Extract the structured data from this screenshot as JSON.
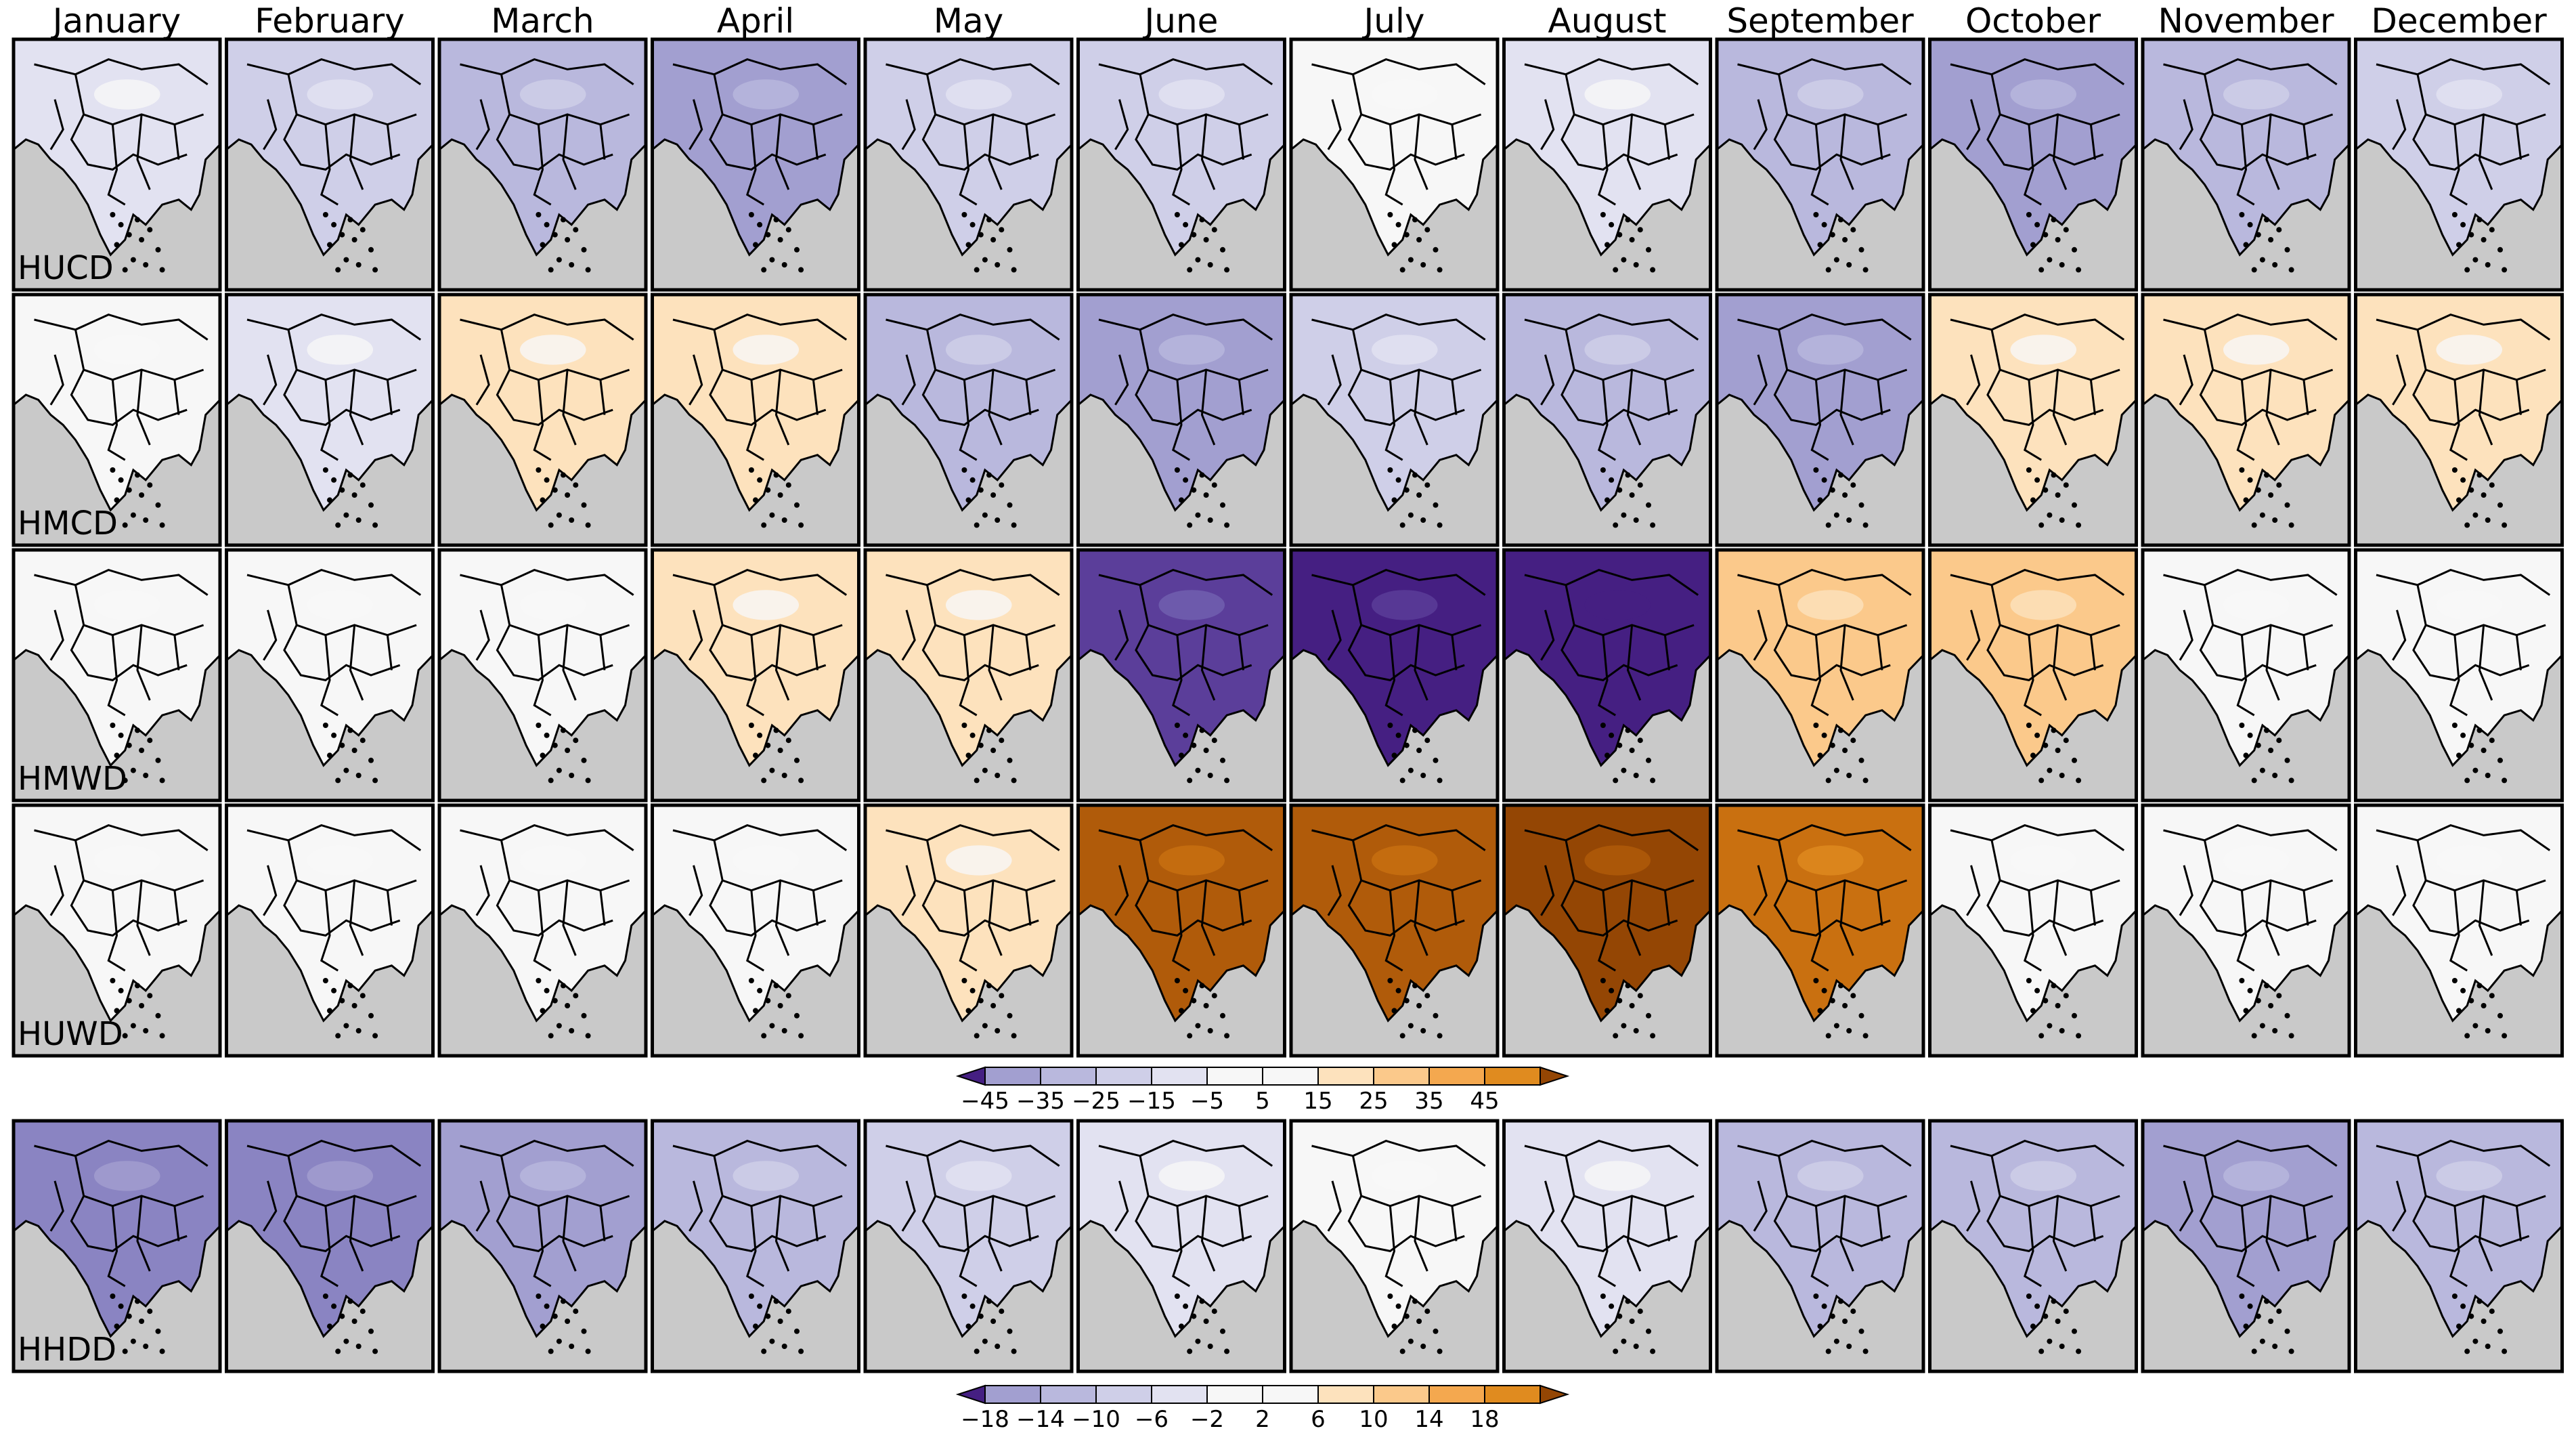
{
  "months": [
    "January",
    "February",
    "March",
    "April",
    "May",
    "June",
    "July",
    "August",
    "September",
    "October",
    "November",
    "December"
  ],
  "rows": [
    {
      "label": "HUCD",
      "levels": [
        1,
        2,
        3,
        4,
        2,
        2,
        0,
        1,
        3,
        4,
        3,
        2
      ]
    },
    {
      "label": "HMCD",
      "levels": [
        0,
        1,
        -1,
        -1,
        3,
        4,
        2,
        3,
        4,
        -1,
        -1,
        -1
      ]
    },
    {
      "label": "HMWD",
      "levels": [
        0,
        0,
        0,
        -1,
        -1,
        7,
        8,
        9,
        -2,
        -2,
        0,
        0
      ]
    },
    {
      "label": "HUWD",
      "levels": [
        0,
        0,
        0,
        0,
        -1,
        -6,
        -6,
        -7,
        -5,
        0,
        0,
        0
      ]
    },
    {
      "label": "HHDD",
      "levels": [
        5,
        5,
        4,
        3,
        2,
        1,
        0,
        1,
        3,
        3,
        4,
        3
      ]
    }
  ],
  "colorbar_top": {
    "ticks": [
      "−45",
      "−35",
      "−25",
      "−15",
      "−5",
      "5",
      "15",
      "25",
      "35",
      "45"
    ]
  },
  "colorbar_bottom": {
    "ticks": [
      "−18",
      "−14",
      "−10",
      "−6",
      "−2",
      "2",
      "6",
      "10",
      "14",
      "18"
    ]
  },
  "palette": {
    "neg": [
      "#f7f7f7",
      "#e2e2f1",
      "#cfcfe8",
      "#b9b8dd",
      "#a29fd0",
      "#8a84c2",
      "#7262b0",
      "#5b3e9a",
      "#451f82"
    ],
    "pos": [
      "#f7f7f7",
      "#fde2bd",
      "#fbc98b",
      "#f4a84f",
      "#e08b1f",
      "#c97010",
      "#b05b0a",
      "#944604"
    ],
    "land_gray": "#c9c9c9",
    "border": "#000000"
  }
}
